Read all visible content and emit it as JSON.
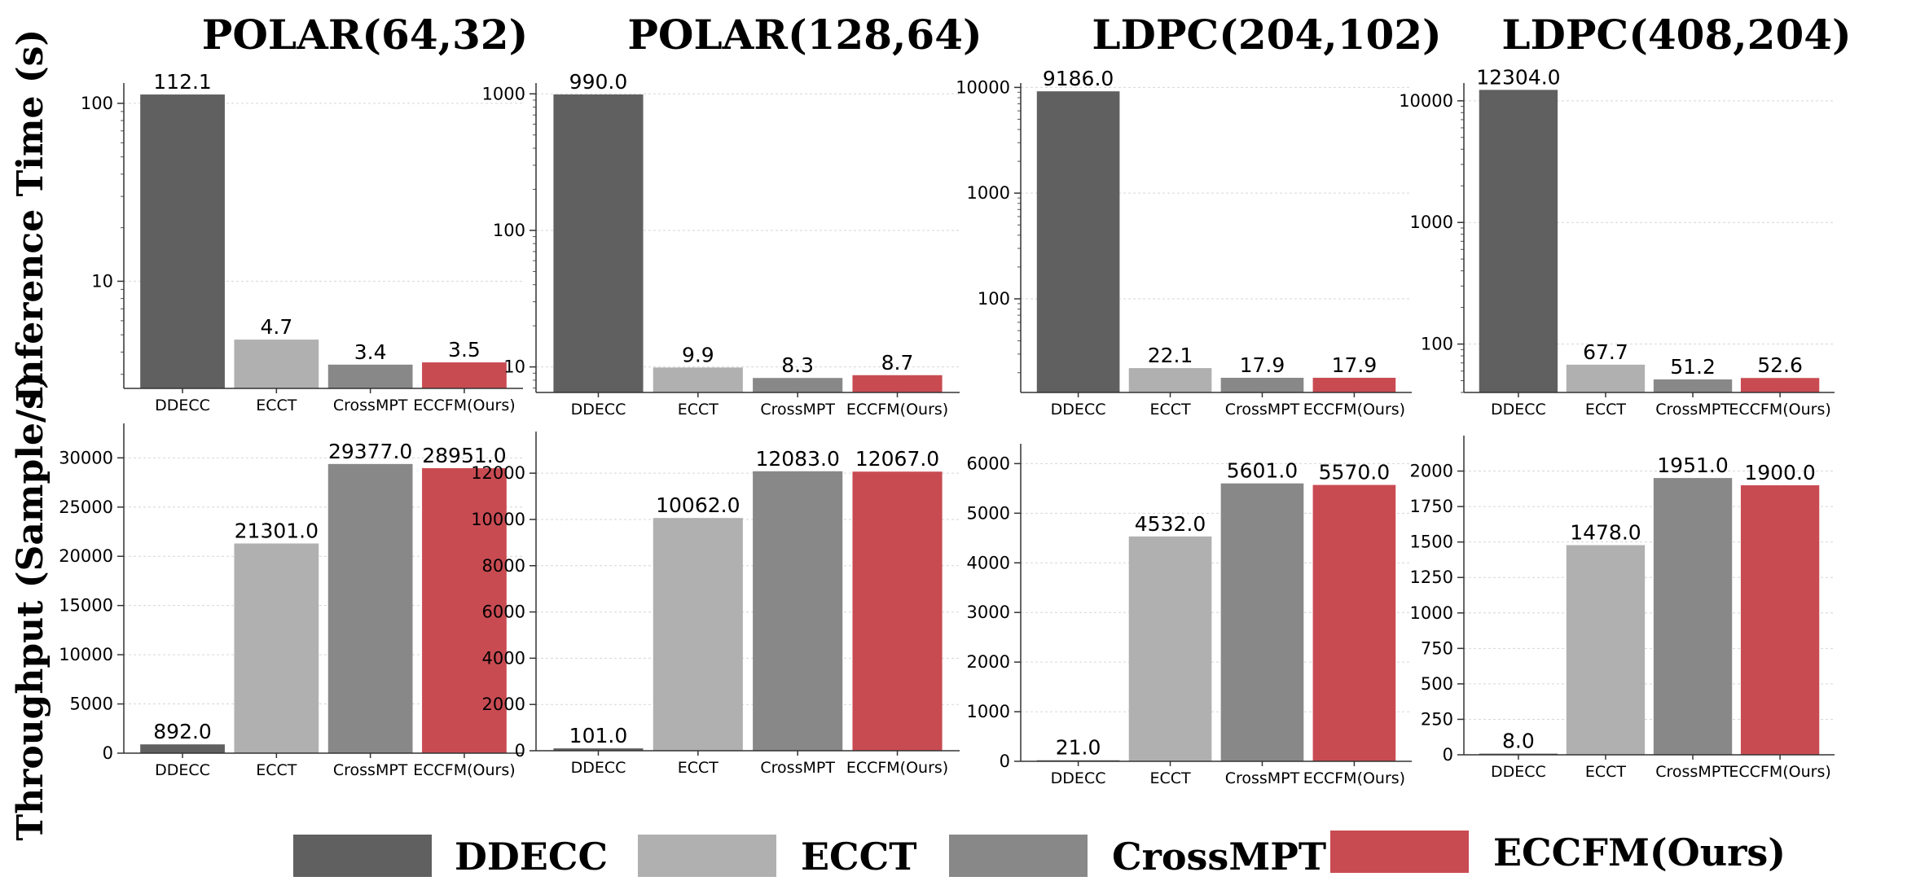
{
  "figure": {
    "row_labels": [
      "Inference Time (s)",
      "Throughput (Sample/s)"
    ],
    "column_titles": [
      "POLAR(64,32)",
      "POLAR(128,64)",
      "LDPC(204,102)",
      "LDPC(408,204)"
    ]
  },
  "legend": {
    "items": [
      {
        "label": "DDECC",
        "color": "#606060"
      },
      {
        "label": "ECCT",
        "color": "#b0b0b0"
      },
      {
        "label": "CrossMPT",
        "color": "#888888"
      },
      {
        "label": "ECCFM(Ours)",
        "color": "#c94b52"
      }
    ]
  },
  "chart_data": [
    {
      "type": "bar",
      "row": "inference",
      "title": "POLAR(64,32)",
      "ylabel": "Inference Time (s)",
      "yscale": "log",
      "categories": [
        "DDECC",
        "ECCT",
        "CrossMPT",
        "ECCFM(Ours)"
      ],
      "values": [
        112.1,
        4.7,
        3.4,
        3.5
      ],
      "labels": [
        "112.1",
        "4.7",
        "3.4",
        "3.5"
      ],
      "ylim": [
        2.5,
        130
      ],
      "yticks": [
        10,
        100
      ],
      "yticklabels": [
        "10",
        "100"
      ]
    },
    {
      "type": "bar",
      "row": "inference",
      "title": "POLAR(128,64)",
      "ylabel": "Inference Time (s)",
      "yscale": "log",
      "categories": [
        "DDECC",
        "ECCT",
        "CrossMPT",
        "ECCFM(Ours)"
      ],
      "values": [
        990.0,
        9.9,
        8.3,
        8.7
      ],
      "labels": [
        "990.0",
        "9.9",
        "8.3",
        "8.7"
      ],
      "ylim": [
        6.5,
        1200
      ],
      "yticks": [
        10,
        100,
        1000
      ],
      "yticklabels": [
        "10",
        "100",
        "1000"
      ]
    },
    {
      "type": "bar",
      "row": "inference",
      "title": "LDPC(204,102)",
      "ylabel": "Inference Time (s)",
      "yscale": "log",
      "categories": [
        "DDECC",
        "ECCT",
        "CrossMPT",
        "ECCFM(Ours)"
      ],
      "values": [
        9186.0,
        22.1,
        17.9,
        17.9
      ],
      "labels": [
        "9186.0",
        "22.1",
        "17.9",
        "17.9"
      ],
      "ylim": [
        13,
        11000
      ],
      "yticks": [
        100,
        1000,
        10000
      ],
      "yticklabels": [
        "100",
        "1000",
        "10000"
      ]
    },
    {
      "type": "bar",
      "row": "inference",
      "title": "LDPC(408,204)",
      "ylabel": "Inference Time (s)",
      "yscale": "log",
      "categories": [
        "DDECC",
        "ECCT",
        "CrossMPT",
        "ECCFM(Ours)"
      ],
      "values": [
        12304.0,
        67.7,
        51.2,
        52.6
      ],
      "labels": [
        "12304.0",
        "67.7",
        "51.2",
        "52.6"
      ],
      "ylim": [
        40,
        14000
      ],
      "yticks": [
        100,
        1000,
        10000
      ],
      "yticklabels": [
        "100",
        "1000",
        "10000"
      ]
    },
    {
      "type": "bar",
      "row": "throughput",
      "ylabel": "Throughput (Sample/s)",
      "yscale": "linear",
      "categories": [
        "DDECC",
        "ECCT",
        "CrossMPT",
        "ECCFM(Ours)"
      ],
      "values": [
        892.0,
        21301.0,
        29377.0,
        28951.0
      ],
      "labels": [
        "892.0",
        "21301.0",
        "29377.0",
        "28951.0"
      ],
      "ylim": [
        0,
        33500
      ],
      "yticks": [
        0,
        5000,
        10000,
        15000,
        20000,
        25000,
        30000
      ],
      "yticklabels": [
        "0",
        "5000",
        "10000",
        "15000",
        "20000",
        "25000",
        "30000"
      ]
    },
    {
      "type": "bar",
      "row": "throughput",
      "ylabel": "Throughput (Sample/s)",
      "yscale": "linear",
      "categories": [
        "DDECC",
        "ECCT",
        "CrossMPT",
        "ECCFM(Ours)"
      ],
      "values": [
        101.0,
        10062.0,
        12083.0,
        12067.0
      ],
      "labels": [
        "101.0",
        "10062.0",
        "12083.0",
        "12067.0"
      ],
      "ylim": [
        0,
        13800
      ],
      "yticks": [
        0,
        2000,
        4000,
        6000,
        8000,
        10000,
        12000
      ],
      "yticklabels": [
        "0",
        "2000",
        "4000",
        "6000",
        "8000",
        "10000",
        "12000"
      ]
    },
    {
      "type": "bar",
      "row": "throughput",
      "ylabel": "Throughput (Sample/s)",
      "yscale": "linear",
      "categories": [
        "DDECC",
        "ECCT",
        "CrossMPT",
        "ECCFM(Ours)"
      ],
      "values": [
        21.0,
        4532.0,
        5601.0,
        5570.0
      ],
      "labels": [
        "21.0",
        "4532.0",
        "5601.0",
        "5570.0"
      ],
      "ylim": [
        0,
        6400
      ],
      "yticks": [
        0,
        1000,
        2000,
        3000,
        4000,
        5000,
        6000
      ],
      "yticklabels": [
        "0",
        "1000",
        "2000",
        "3000",
        "4000",
        "5000",
        "6000"
      ]
    },
    {
      "type": "bar",
      "row": "throughput",
      "ylabel": "Throughput (Sample/s)",
      "yscale": "linear",
      "categories": [
        "DDECC",
        "ECCT",
        "CrossMPT",
        "ECCFM(Ours)"
      ],
      "values": [
        8.0,
        1478.0,
        1951.0,
        1900.0
      ],
      "labels": [
        "8.0",
        "1478.0",
        "1951.0",
        "1900.0"
      ],
      "ylim": [
        0,
        2250
      ],
      "yticks": [
        0,
        250,
        500,
        750,
        1000,
        1250,
        1500,
        1750,
        2000
      ],
      "yticklabels": [
        "0",
        "250",
        "500",
        "750",
        "1000",
        "1250",
        "1500",
        "1750",
        "2000"
      ]
    }
  ]
}
